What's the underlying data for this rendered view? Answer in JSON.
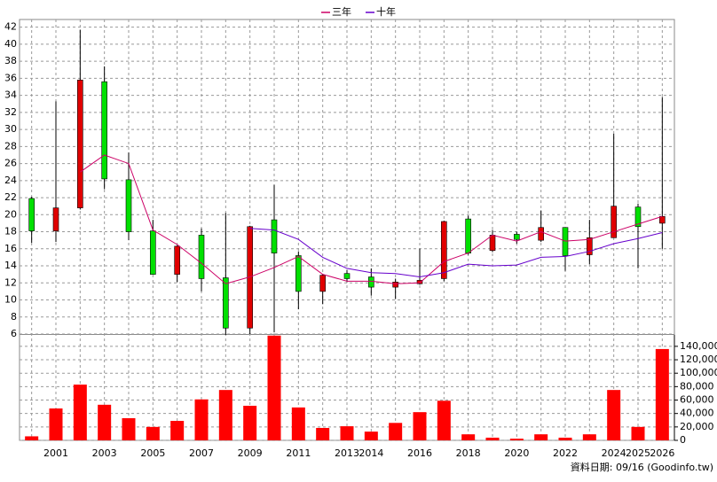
{
  "chart_data": [
    {
      "type": "candlestick",
      "categories": [
        null,
        "2001",
        null,
        "2003",
        null,
        "2005",
        null,
        "2007",
        null,
        "2009",
        null,
        "2011",
        null,
        "2013",
        "2014",
        null,
        "2016",
        null,
        "2018",
        null,
        "2020",
        null,
        "2022",
        null,
        "2024",
        "2025",
        "2026"
      ],
      "open": [
        21.9,
        18.1,
        20.8,
        35.6,
        24.1,
        18.1,
        13.0,
        17.6,
        12.6,
        6.7,
        19.4,
        15.2,
        11.0,
        13.1,
        12.7,
        11.5,
        11.9,
        12.5,
        19.5,
        15.8,
        17.7,
        17.0,
        18.5,
        15.3,
        17.3,
        20.9,
        19.0
      ],
      "close": [
        18.1,
        20.8,
        35.8,
        24.2,
        18.0,
        13.0,
        16.3,
        12.5,
        6.7,
        18.6,
        15.5,
        11.0,
        12.9,
        12.5,
        11.5,
        12.1,
        12.3,
        19.2,
        15.5,
        17.6,
        17.1,
        18.5,
        15.2,
        17.3,
        21.0,
        18.6,
        19.8
      ],
      "high": [
        22.1,
        33.3,
        41.7,
        37.4,
        27.3,
        19.4,
        16.4,
        18.4,
        20.2,
        18.7,
        23.5,
        15.7,
        13.0,
        13.5,
        13.7,
        12.5,
        16.0,
        19.3,
        19.9,
        18.2,
        18.0,
        20.5,
        18.5,
        19.4,
        29.5,
        21.3,
        33.8
      ],
      "low": [
        16.7,
        16.8,
        20.6,
        23.0,
        17.0,
        13.0,
        12.1,
        11.0,
        5.9,
        6.0,
        6.2,
        8.9,
        9.5,
        12.1,
        10.5,
        10.1,
        11.8,
        12.2,
        15.3,
        15.6,
        16.6,
        16.8,
        13.4,
        14.2,
        17.3,
        13.7,
        16.0
      ],
      "up_color": "#e00000",
      "down_color": "#00e000",
      "series": [
        {
          "name": "三年",
          "color": "#cc0066",
          "values": [
            null,
            null,
            25.0,
            27.0,
            26.0,
            18.2,
            16.5,
            14.3,
            11.9,
            12.7,
            13.8,
            15.1,
            13.0,
            12.2,
            12.2,
            11.9,
            12.0,
            14.5,
            15.5,
            17.6,
            16.9,
            18.0,
            16.9,
            17.1,
            18.0,
            18.9,
            19.8
          ]
        },
        {
          "name": "十年",
          "color": "#6600cc",
          "values": [
            null,
            null,
            null,
            null,
            null,
            null,
            null,
            null,
            null,
            18.4,
            18.2,
            17.1,
            15.0,
            13.7,
            13.2,
            13.1,
            12.7,
            13.2,
            14.2,
            14.0,
            14.1,
            15.0,
            15.1,
            15.7,
            16.6,
            17.2,
            17.9
          ]
        }
      ],
      "ylim": [
        6,
        42.9
      ],
      "yticks": [
        6,
        8,
        10,
        12,
        14,
        16,
        18,
        20,
        22,
        24,
        26,
        28,
        30,
        32,
        34,
        36,
        38,
        40,
        42
      ],
      "grid": true
    },
    {
      "type": "bar",
      "color": "#ff0000",
      "values": [
        6000,
        47500,
        83000,
        53000,
        33000,
        20000,
        29000,
        61000,
        75000,
        51500,
        156000,
        49000,
        18500,
        21000,
        13000,
        26000,
        42000,
        59000,
        9000,
        4000,
        2500,
        9000,
        4000,
        9000,
        75000,
        20000,
        136000
      ],
      "ylim": [
        0,
        157000
      ],
      "yticks": [
        0,
        {
          "value": 20000,
          "label": "20,000"
        },
        {
          "value": 40000,
          "label": "40,000"
        },
        {
          "value": 60000,
          "label": "60,000"
        },
        {
          "value": 80000,
          "label": "80,000"
        },
        {
          "value": 100000,
          "label": "100,000"
        },
        {
          "value": 120000,
          "label": "120,000"
        },
        {
          "value": 140000,
          "label": "140,000"
        }
      ]
    }
  ],
  "footer": "資料日期: 09/16 (Goodinfo.tw)"
}
